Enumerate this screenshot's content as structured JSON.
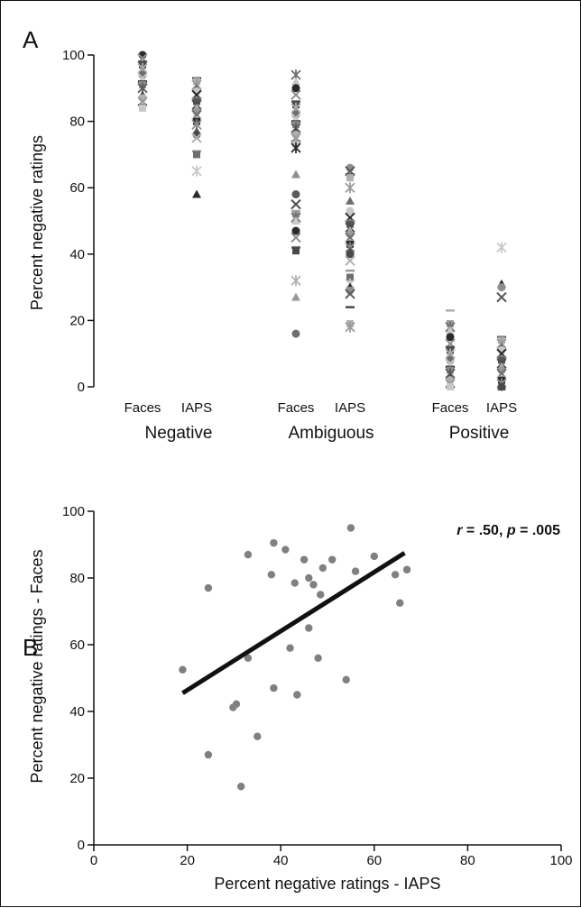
{
  "panel_labels": {
    "a": "A",
    "b": "B"
  },
  "chart_data": [
    {
      "type": "scatter",
      "panel": "A",
      "ylabel": "Percent negative ratings",
      "ylim": [
        0,
        100
      ],
      "yticks": [
        "0",
        "20",
        "40",
        "60",
        "80",
        "100"
      ],
      "groups": [
        {
          "label": "Negative",
          "columns": [
            "Faces",
            "IAPS"
          ]
        },
        {
          "label": "Ambiguous",
          "columns": [
            "Faces",
            "IAPS"
          ]
        },
        {
          "label": "Positive",
          "columns": [
            "Faces",
            "IAPS"
          ]
        }
      ],
      "columns": [
        {
          "group": "Negative",
          "category": "Faces",
          "values": [
            100,
            99,
            98,
            97,
            96,
            95,
            94,
            93,
            92,
            91,
            90,
            88,
            87,
            86,
            85,
            84
          ]
        },
        {
          "group": "Negative",
          "category": "IAPS",
          "values": [
            93,
            92,
            91,
            90,
            89,
            88,
            87,
            86,
            85,
            84,
            83,
            82,
            81,
            80,
            79,
            77,
            76,
            75,
            71,
            70,
            65,
            58
          ]
        },
        {
          "group": "Ambiguous",
          "category": "Faces",
          "values": [
            94,
            92,
            90,
            88,
            86,
            85,
            84,
            83,
            82,
            81,
            80,
            79,
            78,
            77,
            76,
            75,
            74,
            73,
            72,
            64,
            58,
            55,
            53,
            52,
            51,
            50,
            47,
            45,
            42,
            41,
            32,
            27,
            16
          ]
        },
        {
          "group": "Ambiguous",
          "category": "IAPS",
          "values": [
            66,
            65,
            64,
            63,
            60,
            56,
            53,
            51,
            50,
            49,
            48,
            47,
            46,
            45,
            44,
            43,
            42,
            41,
            40,
            38,
            35,
            33,
            31,
            30,
            29,
            28,
            24,
            19,
            18
          ]
        },
        {
          "group": "Positive",
          "category": "Faces",
          "values": [
            23,
            19,
            18,
            17,
            15,
            13,
            12,
            11,
            10,
            9,
            8,
            7,
            6,
            5,
            4,
            3,
            2,
            1,
            0,
            0
          ]
        },
        {
          "group": "Positive",
          "category": "IAPS",
          "values": [
            42,
            31,
            30,
            27,
            15,
            14,
            13,
            12,
            11,
            10,
            9,
            8,
            7,
            6,
            5,
            4,
            3,
            2,
            1,
            0,
            0
          ]
        }
      ]
    },
    {
      "type": "scatter",
      "panel": "B",
      "xlabel": "Percent negative ratings - IAPS",
      "ylabel": "Percent negative ratings - Faces",
      "xlim": [
        0,
        100
      ],
      "ylim": [
        0,
        100
      ],
      "xticks": [
        "0",
        "20",
        "40",
        "60",
        "80",
        "100"
      ],
      "yticks": [
        "0",
        "20",
        "40",
        "60",
        "80",
        "100"
      ],
      "annotation": {
        "r_label": "r",
        "r_text": " = .50, ",
        "p_label": "p",
        "p_text": " = .005"
      },
      "points": [
        {
          "x": 19,
          "y": 52.5
        },
        {
          "x": 24.5,
          "y": 77
        },
        {
          "x": 24.5,
          "y": 27
        },
        {
          "x": 29.8,
          "y": 41.2
        },
        {
          "x": 30.5,
          "y": 42.2
        },
        {
          "x": 31.5,
          "y": 17.5
        },
        {
          "x": 33,
          "y": 87
        },
        {
          "x": 33,
          "y": 56
        },
        {
          "x": 35,
          "y": 32.5
        },
        {
          "x": 38,
          "y": 81
        },
        {
          "x": 38.5,
          "y": 90.5
        },
        {
          "x": 38.5,
          "y": 47
        },
        {
          "x": 41,
          "y": 88.5
        },
        {
          "x": 42,
          "y": 59
        },
        {
          "x": 43,
          "y": 78.5
        },
        {
          "x": 43.5,
          "y": 45
        },
        {
          "x": 45,
          "y": 85.5
        },
        {
          "x": 46,
          "y": 80
        },
        {
          "x": 46,
          "y": 65
        },
        {
          "x": 47,
          "y": 78
        },
        {
          "x": 48,
          "y": 56
        },
        {
          "x": 48.5,
          "y": 75
        },
        {
          "x": 49,
          "y": 83
        },
        {
          "x": 51,
          "y": 85.5
        },
        {
          "x": 54,
          "y": 49.5
        },
        {
          "x": 55,
          "y": 95
        },
        {
          "x": 56,
          "y": 82
        },
        {
          "x": 60,
          "y": 86.5
        },
        {
          "x": 64.5,
          "y": 81
        },
        {
          "x": 65.5,
          "y": 72.5
        },
        {
          "x": 67,
          "y": 82.5
        }
      ],
      "fit_line": {
        "x1": 19,
        "y1": 45.5,
        "x2": 66.5,
        "y2": 87.5
      }
    }
  ],
  "colors": {
    "ink": "#111111",
    "marker_gray": "#808080"
  }
}
